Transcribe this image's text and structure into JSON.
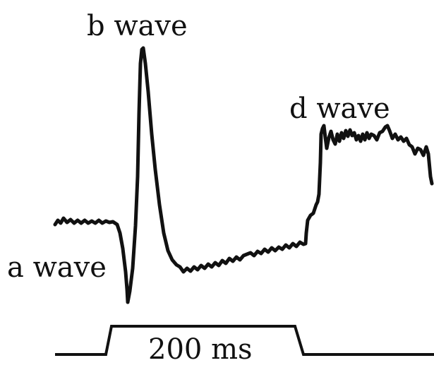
{
  "labels": {
    "b_wave": "b wave",
    "a_wave": "a wave",
    "d_wave": "d wave",
    "duration": "200 ms"
  },
  "colors": {
    "line": "#111111",
    "background": "#ffffff"
  }
}
